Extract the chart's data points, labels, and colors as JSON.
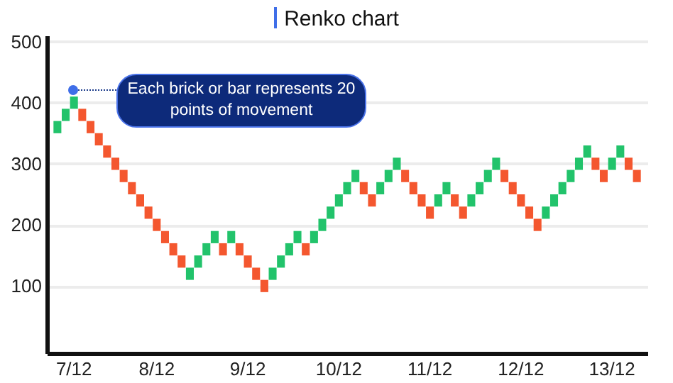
{
  "chart_data": {
    "type": "bar",
    "title": "Renko chart",
    "categories": [
      null,
      null,
      "7/12",
      null,
      null,
      null,
      null,
      null,
      null,
      null,
      null,
      null,
      "8/12",
      null,
      null,
      null,
      null,
      null,
      null,
      null,
      null,
      null,
      null,
      "9/12",
      null,
      null,
      null,
      null,
      null,
      null,
      null,
      null,
      null,
      null,
      "10/12",
      null,
      null,
      null,
      null,
      null,
      null,
      null,
      null,
      null,
      null,
      "11/12",
      null,
      null,
      null,
      null,
      null,
      null,
      null,
      null,
      null,
      null,
      "12/12",
      null,
      null,
      null,
      null,
      null,
      null,
      null,
      null,
      null,
      null,
      "13/12",
      null,
      null,
      null
    ],
    "base": [
      350,
      370,
      390,
      390,
      370,
      350,
      330,
      310,
      290,
      270,
      250,
      230,
      210,
      190,
      170,
      150,
      110,
      130,
      150,
      170,
      170,
      170,
      170,
      150,
      130,
      110,
      110,
      130,
      150,
      170,
      170,
      170,
      190,
      210,
      230,
      250,
      270,
      270,
      250,
      250,
      270,
      290,
      290,
      270,
      250,
      230,
      230,
      250,
      250,
      230,
      230,
      250,
      270,
      290,
      290,
      270,
      250,
      230,
      210,
      210,
      230,
      250,
      270,
      290,
      310,
      310,
      290,
      290,
      310,
      310,
      290
    ],
    "values": [
      20,
      20,
      20,
      -20,
      -20,
      -20,
      -20,
      -20,
      -20,
      -20,
      -20,
      -20,
      -20,
      -20,
      -20,
      -20,
      20,
      20,
      20,
      20,
      -20,
      20,
      -20,
      -20,
      -20,
      -20,
      20,
      20,
      20,
      20,
      -20,
      20,
      20,
      20,
      20,
      20,
      20,
      -20,
      -20,
      20,
      20,
      20,
      -20,
      -20,
      -20,
      -20,
      20,
      20,
      -20,
      -20,
      20,
      20,
      20,
      20,
      -20,
      -20,
      -20,
      -20,
      -20,
      20,
      20,
      20,
      20,
      20,
      20,
      -20,
      -20,
      20,
      20,
      -20,
      -20
    ],
    "colors": [
      "#22c36b",
      "#22c36b",
      "#22c36b",
      "#f4572f",
      "#f4572f",
      "#f4572f",
      "#f4572f",
      "#f4572f",
      "#f4572f",
      "#f4572f",
      "#f4572f",
      "#f4572f",
      "#f4572f",
      "#f4572f",
      "#f4572f",
      "#f4572f",
      "#22c36b",
      "#22c36b",
      "#22c36b",
      "#22c36b",
      "#f4572f",
      "#22c36b",
      "#f4572f",
      "#f4572f",
      "#f4572f",
      "#f4572f",
      "#22c36b",
      "#22c36b",
      "#22c36b",
      "#22c36b",
      "#f4572f",
      "#22c36b",
      "#22c36b",
      "#22c36b",
      "#22c36b",
      "#22c36b",
      "#22c36b",
      "#f4572f",
      "#f4572f",
      "#22c36b",
      "#22c36b",
      "#22c36b",
      "#f4572f",
      "#f4572f",
      "#f4572f",
      "#f4572f",
      "#22c36b",
      "#22c36b",
      "#f4572f",
      "#f4572f",
      "#22c36b",
      "#22c36b",
      "#22c36b",
      "#22c36b",
      "#f4572f",
      "#f4572f",
      "#f4572f",
      "#f4572f",
      "#f4572f",
      "#22c36b",
      "#22c36b",
      "#22c36b",
      "#22c36b",
      "#22c36b",
      "#22c36b",
      "#f4572f",
      "#f4572f",
      "#22c36b",
      "#22c36b",
      "#f4572f",
      "#f4572f"
    ],
    "ylim": [
      -10,
      510
    ],
    "yticks": [
      100,
      200,
      300,
      400,
      500
    ],
    "grid": "y",
    "annotations": [
      "Each brick or bar represents 20 points of movement"
    ]
  }
}
